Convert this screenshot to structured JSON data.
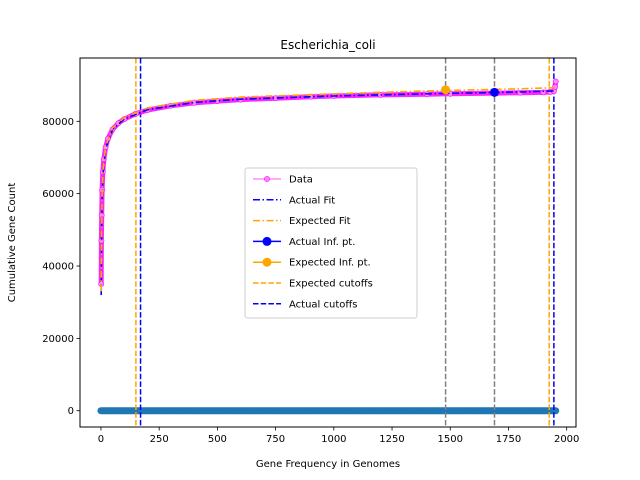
{
  "chart_data": {
    "type": "line",
    "title": "Escherichia_coli",
    "xlabel": "Gene Frequency in Genomes",
    "ylabel": "Cumulative Gene Count",
    "xlim": [
      -90,
      2040
    ],
    "ylim": [
      -4500,
      97500
    ],
    "xticks": [
      0,
      250,
      500,
      750,
      1000,
      1250,
      1500,
      1750,
      2000
    ],
    "yticks": [
      0,
      20000,
      40000,
      60000,
      80000
    ],
    "grid": false,
    "legend_position": "center",
    "series": [
      {
        "name": "Data",
        "color": "#ff00ff",
        "x": [
          1,
          2,
          3,
          5,
          8,
          12,
          20,
          30,
          50,
          75,
          100,
          150,
          200,
          300,
          400,
          500,
          600,
          750,
          900,
          1000,
          1200,
          1400,
          1500,
          1700,
          1800,
          1900,
          1930,
          1945,
          1950,
          1953
        ],
        "y": [
          35000,
          47000,
          54000,
          61000,
          66000,
          69500,
          72800,
          75200,
          77800,
          79500,
          80600,
          82100,
          83100,
          84300,
          85100,
          85600,
          86000,
          86400,
          86800,
          87000,
          87300,
          87500,
          87600,
          87800,
          87900,
          88000,
          88100,
          88300,
          89500,
          91000
        ]
      },
      {
        "name": "Actual Fit",
        "color": "#0000ff",
        "x": [
          1,
          3,
          8,
          20,
          50,
          100,
          200,
          400,
          600,
          1000,
          1400,
          1800,
          1950
        ],
        "y": [
          32000,
          52000,
          65000,
          72500,
          77800,
          80600,
          83200,
          85200,
          86100,
          87000,
          87600,
          88100,
          88400
        ]
      },
      {
        "name": "Expected Fit",
        "color": "#ffa500",
        "x": [
          1,
          3,
          8,
          20,
          50,
          100,
          200,
          400,
          600,
          1000,
          1400,
          1800,
          1950
        ],
        "y": [
          33000,
          53000,
          66000,
          73000,
          78200,
          81000,
          83700,
          85800,
          86700,
          87600,
          88400,
          89000,
          89300
        ]
      },
      {
        "name": "Distribution",
        "color": "#1f77b4",
        "x_range": [
          0,
          1953
        ],
        "y": 0
      }
    ],
    "points": [
      {
        "name": "Actual Inf. pt.",
        "color": "#0000ff",
        "x": 1690,
        "y": 88000
      },
      {
        "name": "Expected Inf. pt.",
        "color": "#ffa500",
        "x": 1480,
        "y": 88700
      }
    ],
    "vlines": [
      {
        "name": "Expected cutoffs",
        "color": "#ffa500",
        "x": [
          150,
          1925
        ]
      },
      {
        "name": "Actual cutoffs",
        "color": "#0000ff",
        "x": [
          170,
          1945
        ]
      },
      {
        "name": "inflection",
        "color": "#808080",
        "x": [
          1480,
          1690
        ]
      }
    ],
    "legend": [
      {
        "label": "Data",
        "color": "#ff00ff",
        "style": "data"
      },
      {
        "label": "Actual Fit",
        "color": "#0000ff",
        "style": "dashdot"
      },
      {
        "label": "Expected Fit",
        "color": "#ffa500",
        "style": "dashdot"
      },
      {
        "label": "Actual Inf. pt.",
        "color": "#0000ff",
        "style": "marker"
      },
      {
        "label": "Expected Inf. pt.",
        "color": "#ffa500",
        "style": "marker"
      },
      {
        "label": "Expected cutoffs",
        "color": "#ffa500",
        "style": "dashed"
      },
      {
        "label": "Actual cutoffs",
        "color": "#0000ff",
        "style": "dashed"
      }
    ]
  }
}
